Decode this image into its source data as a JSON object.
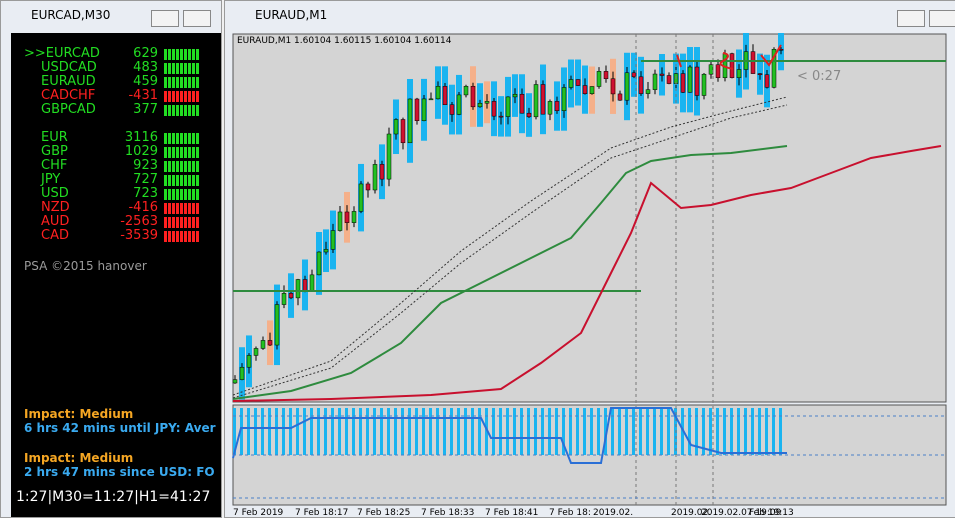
{
  "left_window": {
    "title": "EURCAD,M30",
    "rows": [
      {
        "name": ">>EURCAD",
        "value": 629,
        "color": "#22dd22"
      },
      {
        "name": "USDCAD",
        "value": 483,
        "color": "#22dd22"
      },
      {
        "name": "EURAUD",
        "value": 459,
        "color": "#22dd22"
      },
      {
        "name": "CADCHF",
        "value": -431,
        "color": "#ff2020"
      },
      {
        "name": "GBPCAD",
        "value": 377,
        "color": "#22dd22"
      }
    ],
    "currencies": [
      {
        "name": "EUR",
        "value": 3116,
        "color": "#22dd22"
      },
      {
        "name": "GBP",
        "value": 1029,
        "color": "#22dd22"
      },
      {
        "name": "CHF",
        "value": 923,
        "color": "#22dd22"
      },
      {
        "name": "JPY",
        "value": 727,
        "color": "#22dd22"
      },
      {
        "name": "USD",
        "value": 723,
        "color": "#22dd22"
      },
      {
        "name": "NZD",
        "value": -416,
        "color": "#ff2020"
      },
      {
        "name": "AUD",
        "value": -2563,
        "color": "#ff2020"
      },
      {
        "name": "CAD",
        "value": -3539,
        "color": "#ff2020"
      }
    ],
    "credit": "PSA ©2015 hanover",
    "news": [
      {
        "impact": "Impact: Medium",
        "text": "6 hrs 42 mins until JPY: Aver"
      },
      {
        "impact": "Impact: Medium",
        "text": "2 hrs 47 mins since USD: FO"
      }
    ],
    "timer": "1:27|M30=11:27|H1=41:27"
  },
  "right_window": {
    "title": "EURAUD,M1",
    "header": "EURAUD,M1  1.60104 1.60115 1.60104 1.60114",
    "countdown": "< 0:27",
    "x_labels": [
      "7 Feb 2019",
      "7 Feb 18:17",
      "7 Feb 18:25",
      "7 Feb 18:33",
      "7 Feb 18:41",
      "7 Feb 18:",
      "2019.02.",
      "2019.02.",
      "2019.02.07 19:09",
      "Feb 19:13"
    ]
  }
}
